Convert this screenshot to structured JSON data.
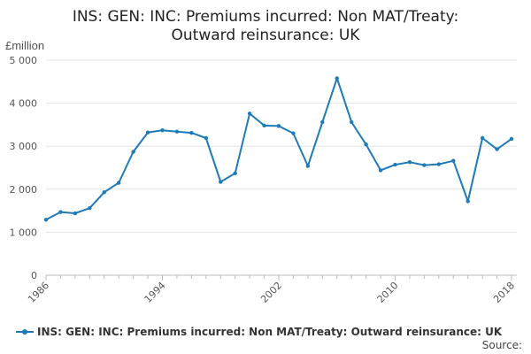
{
  "chart_data": {
    "type": "line",
    "title_lines": [
      "INS: GEN: INC: Premiums incurred: Non MAT/Treaty:",
      "Outward reinsurance: UK"
    ],
    "ylabel": "£million",
    "xlabel": "",
    "ylim": [
      0,
      5000
    ],
    "xlim": [
      1986,
      2018
    ],
    "y_ticks": [
      0,
      1000,
      2000,
      3000,
      4000,
      5000
    ],
    "y_tick_labels": [
      "0",
      "1 000",
      "2 000",
      "3 000",
      "4 000",
      "5 000"
    ],
    "x_ticks": [
      1986,
      1994,
      2002,
      2010,
      2018
    ],
    "x_tick_labels": [
      "1986",
      "1994",
      "2002",
      "2010",
      "2018"
    ],
    "grid": "horizontal",
    "legend_position": "bottom",
    "color": "#1f7ab8",
    "series": [
      {
        "name": "INS: GEN: INC: Premiums incurred: Non MAT/Treaty: Outward reinsurance: UK",
        "x": [
          1986,
          1987,
          1988,
          1989,
          1990,
          1991,
          1992,
          1993,
          1994,
          1995,
          1996,
          1997,
          1998,
          1999,
          2000,
          2001,
          2002,
          2003,
          2004,
          2005,
          2006,
          2007,
          2008,
          2009,
          2010,
          2011,
          2012,
          2013,
          2014,
          2015,
          2016,
          2017,
          2018
        ],
        "values": [
          1290,
          1470,
          1440,
          1560,
          1930,
          2150,
          2870,
          3320,
          3370,
          3340,
          3310,
          3190,
          2170,
          2370,
          3760,
          3480,
          3470,
          3300,
          2540,
          3560,
          4580,
          3560,
          3040,
          2440,
          2570,
          2630,
          2560,
          2580,
          2660,
          1720,
          3190,
          2930,
          3170
        ]
      }
    ]
  },
  "source_label": "Source:"
}
